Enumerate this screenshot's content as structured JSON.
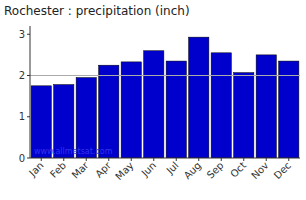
{
  "chart_data": {
    "type": "bar",
    "title": "Rochester : precipitation (inch)",
    "categories": [
      "Jan",
      "Feb",
      "Mar",
      "Apr",
      "May",
      "Jun",
      "Jul",
      "Aug",
      "Sep",
      "Oct",
      "Nov",
      "Dec"
    ],
    "values": [
      1.75,
      1.78,
      1.95,
      2.25,
      2.33,
      2.6,
      2.35,
      2.93,
      2.55,
      2.07,
      2.5,
      2.35
    ],
    "color": "#0000CC",
    "ylim": [
      0,
      3.2
    ],
    "yticks": [
      0,
      1,
      2,
      3
    ],
    "grid": false,
    "reference_line": {
      "value": 2.0,
      "color": "#aaaaaa"
    },
    "annotations": [
      {
        "text": "www.allmetsat.com",
        "color": "#3333ee"
      }
    ]
  }
}
